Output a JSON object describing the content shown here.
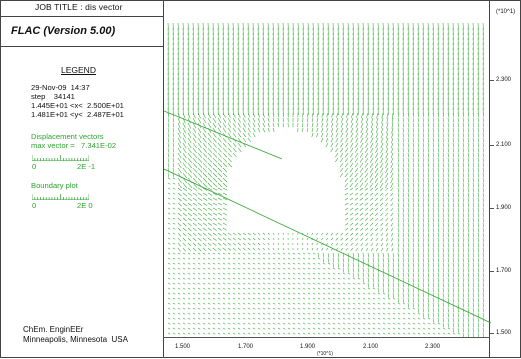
{
  "header": {
    "job_title": "JOB TITLE : dis vector",
    "version": "FLAC (Version 5.00)"
  },
  "legend": {
    "title": "LEGEND",
    "date": "29-Nov-09  14:37",
    "step": "step    34141",
    "x_range": "1.445E+01 <x<  2.500E+01",
    "y_range": "1.481E+01 <y<  2.487E+01",
    "disp_title": "Displacement vectors",
    "max_vector": "max vector =   7.341E-02",
    "disp_scale_min": "0",
    "disp_scale_max": "2E -1",
    "boundary_title": "Boundary plot",
    "boundary_scale_min": "0",
    "boundary_scale_max": "2E  0"
  },
  "footer": {
    "line1": "ChEm. EnginEEr",
    "line2": "Minneapolis, Minnesota  USA"
  },
  "axes": {
    "y_unit": "(*10^1)",
    "x_unit": "(*10^1)",
    "y_ticks": [
      "2.300",
      "2.100",
      "1.900",
      "1.700",
      "1.500"
    ],
    "x_ticks": [
      "1.500",
      "1.700",
      "1.900",
      "2.100",
      "2.300"
    ]
  },
  "colors": {
    "vector": "#2ea52e",
    "border": "#444444"
  }
}
